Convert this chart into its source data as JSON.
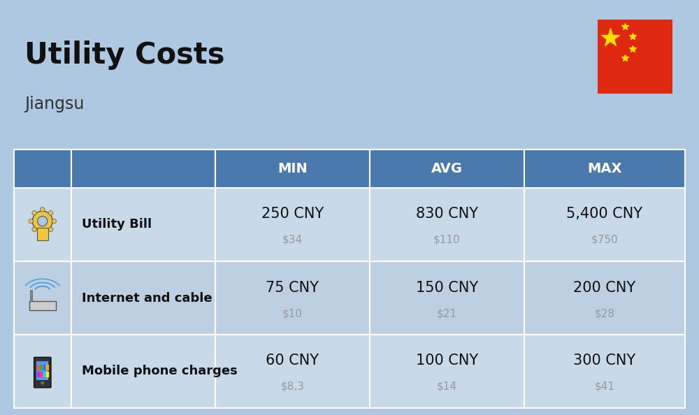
{
  "title": "Utility Costs",
  "subtitle": "Jiangsu",
  "background_color": "#adc8e0",
  "header_color": "#4a7aad",
  "header_text_color": "#ffffff",
  "row_color_light": "#c8d9e8",
  "row_color_dark": "#bdd0e2",
  "col_headers": [
    "MIN",
    "AVG",
    "MAX"
  ],
  "rows": [
    {
      "label": "Utility Bill",
      "min_cny": "250 CNY",
      "min_usd": "$34",
      "avg_cny": "830 CNY",
      "avg_usd": "$110",
      "max_cny": "5,400 CNY",
      "max_usd": "$750"
    },
    {
      "label": "Internet and cable",
      "min_cny": "75 CNY",
      "min_usd": "$10",
      "avg_cny": "150 CNY",
      "avg_usd": "$21",
      "max_cny": "200 CNY",
      "max_usd": "$28"
    },
    {
      "label": "Mobile phone charges",
      "min_cny": "60 CNY",
      "min_usd": "$8.3",
      "avg_cny": "100 CNY",
      "avg_usd": "$14",
      "max_cny": "300 CNY",
      "max_usd": "$41"
    }
  ],
  "title_fontsize": 30,
  "subtitle_fontsize": 17,
  "header_fontsize": 14,
  "label_fontsize": 13,
  "value_fontsize": 15,
  "usd_fontsize": 11,
  "usd_color": "#999999",
  "flag_red": "#DE2910",
  "flag_yellow": "#FFDE00"
}
